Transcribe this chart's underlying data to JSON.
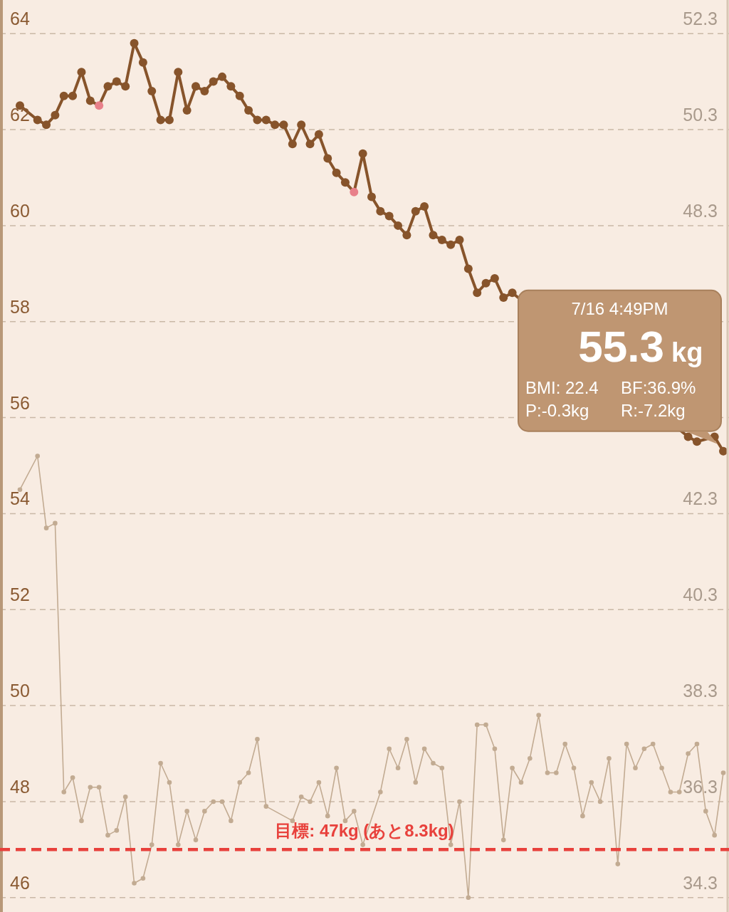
{
  "chart_data": {
    "type": "line",
    "categories": [
      null,
      null,
      null,
      null,
      null,
      null,
      null,
      null,
      null,
      null,
      null,
      null,
      null,
      null,
      null,
      null,
      null,
      null,
      null,
      null,
      null,
      null,
      null,
      null,
      null,
      null,
      null,
      null,
      null,
      null,
      null,
      null,
      null,
      null,
      null,
      null,
      null,
      null,
      null,
      null,
      null,
      null,
      null,
      null,
      null,
      null,
      null,
      null,
      null,
      null,
      null,
      null,
      null,
      null,
      null,
      null,
      null,
      null,
      null,
      null,
      null,
      null,
      null,
      null,
      null,
      null,
      null,
      null,
      null,
      null,
      null,
      null,
      null,
      null,
      null,
      null,
      null,
      null,
      null,
      null,
      null
    ],
    "ylim": [
      45.7,
      64.7
    ],
    "yticks": [
      46,
      48,
      50,
      52,
      54,
      56,
      58,
      60,
      62,
      64
    ],
    "y2lim": [
      34.0,
      53.0
    ],
    "y2ticks": [
      34.3,
      36.3,
      38.3,
      40.3,
      42.3,
      48.3,
      50.3,
      52.3
    ],
    "grid": "y",
    "line_style": "solid",
    "series": [
      {
        "color": "#87542b",
        "marker": "circle",
        "colors": [
          "#87542b",
          null,
          "#87542b",
          "#87542b",
          "#87542b",
          "#87542b",
          "#87542b",
          "#87542b",
          "#87542b",
          "#e8808a",
          "#87542b",
          "#87542b",
          "#87542b",
          "#87542b",
          "#87542b",
          "#87542b",
          "#87542b",
          "#87542b",
          "#87542b",
          "#87542b",
          "#87542b",
          "#87542b",
          "#87542b",
          "#87542b",
          "#87542b",
          "#87542b",
          "#87542b",
          "#87542b",
          "#87542b",
          "#87542b",
          "#87542b",
          "#87542b",
          "#87542b",
          "#87542b",
          "#87542b",
          "#87542b",
          "#87542b",
          "#87542b",
          "#e8808a",
          "#87542b",
          "#87542b",
          "#87542b",
          "#87542b",
          "#87542b",
          "#87542b",
          "#87542b",
          "#87542b",
          "#87542b",
          "#87542b",
          "#87542b",
          "#87542b",
          "#87542b",
          "#87542b",
          "#87542b",
          "#87542b",
          "#87542b",
          "#87542b",
          null,
          null,
          null,
          null,
          null,
          null,
          null,
          null,
          null,
          null,
          null,
          null,
          null,
          null,
          null,
          null,
          null,
          null,
          null,
          "#87542b",
          "#87542b",
          null,
          "#87542b",
          "#87542b"
        ],
        "values": [
          62.5,
          null,
          62.2,
          62.1,
          62.3,
          62.7,
          62.7,
          63.2,
          62.6,
          62.5,
          62.9,
          63.0,
          62.9,
          63.8,
          63.4,
          62.8,
          62.2,
          62.2,
          63.2,
          62.4,
          62.9,
          62.8,
          63.0,
          63.1,
          62.9,
          62.7,
          62.4,
          62.2,
          62.2,
          62.1,
          62.1,
          61.7,
          62.1,
          61.7,
          61.9,
          61.4,
          61.1,
          60.9,
          60.7,
          61.5,
          60.6,
          60.3,
          60.2,
          60.0,
          59.8,
          60.3,
          60.4,
          59.8,
          59.7,
          59.6,
          59.7,
          59.1,
          58.6,
          58.8,
          58.9,
          58.5,
          58.6,
          null,
          null,
          null,
          null,
          null,
          null,
          null,
          null,
          null,
          null,
          null,
          null,
          null,
          null,
          null,
          null,
          null,
          null,
          null,
          55.6,
          55.5,
          null,
          55.6,
          55.3
        ]
      },
      {
        "color": "#c2ab92",
        "marker": "circle",
        "axis": "y2",
        "values": [
          42.8,
          null,
          43.5,
          42.0,
          42.1,
          36.5,
          36.8,
          35.9,
          36.6,
          36.6,
          35.6,
          35.7,
          36.4,
          34.6,
          34.7,
          35.4,
          37.1,
          36.7,
          35.4,
          36.1,
          35.5,
          36.1,
          36.3,
          36.3,
          35.9,
          36.7,
          36.9,
          37.6,
          36.2,
          null,
          null,
          35.9,
          36.4,
          36.3,
          36.7,
          36.0,
          37.0,
          35.9,
          36.1,
          35.4,
          null,
          36.5,
          37.4,
          37.0,
          37.6,
          36.7,
          37.4,
          37.1,
          37.0,
          35.4,
          36.3,
          34.3,
          37.9,
          37.9,
          37.4,
          35.5,
          37.0,
          36.7,
          37.2,
          38.1,
          36.9,
          36.9,
          37.5,
          37.0,
          36.0,
          36.7,
          36.3,
          37.2,
          35.0,
          37.5,
          37.0,
          37.4,
          37.5,
          37.0,
          36.5,
          36.5,
          37.3,
          37.5,
          36.1,
          35.6,
          36.9
        ]
      }
    ],
    "ref_lines": [
      {
        "axis": "y",
        "value": 47,
        "label": "目標: 47kg (あと8.3kg)",
        "color": "#e8413c",
        "line_style": "dashed"
      }
    ],
    "annotations": [
      "7/16 4:49PM",
      "55.3",
      "kg",
      "BMI: 22.4",
      "BF:36.9%",
      "P:-0.3kg",
      "R:-7.2kg"
    ]
  }
}
